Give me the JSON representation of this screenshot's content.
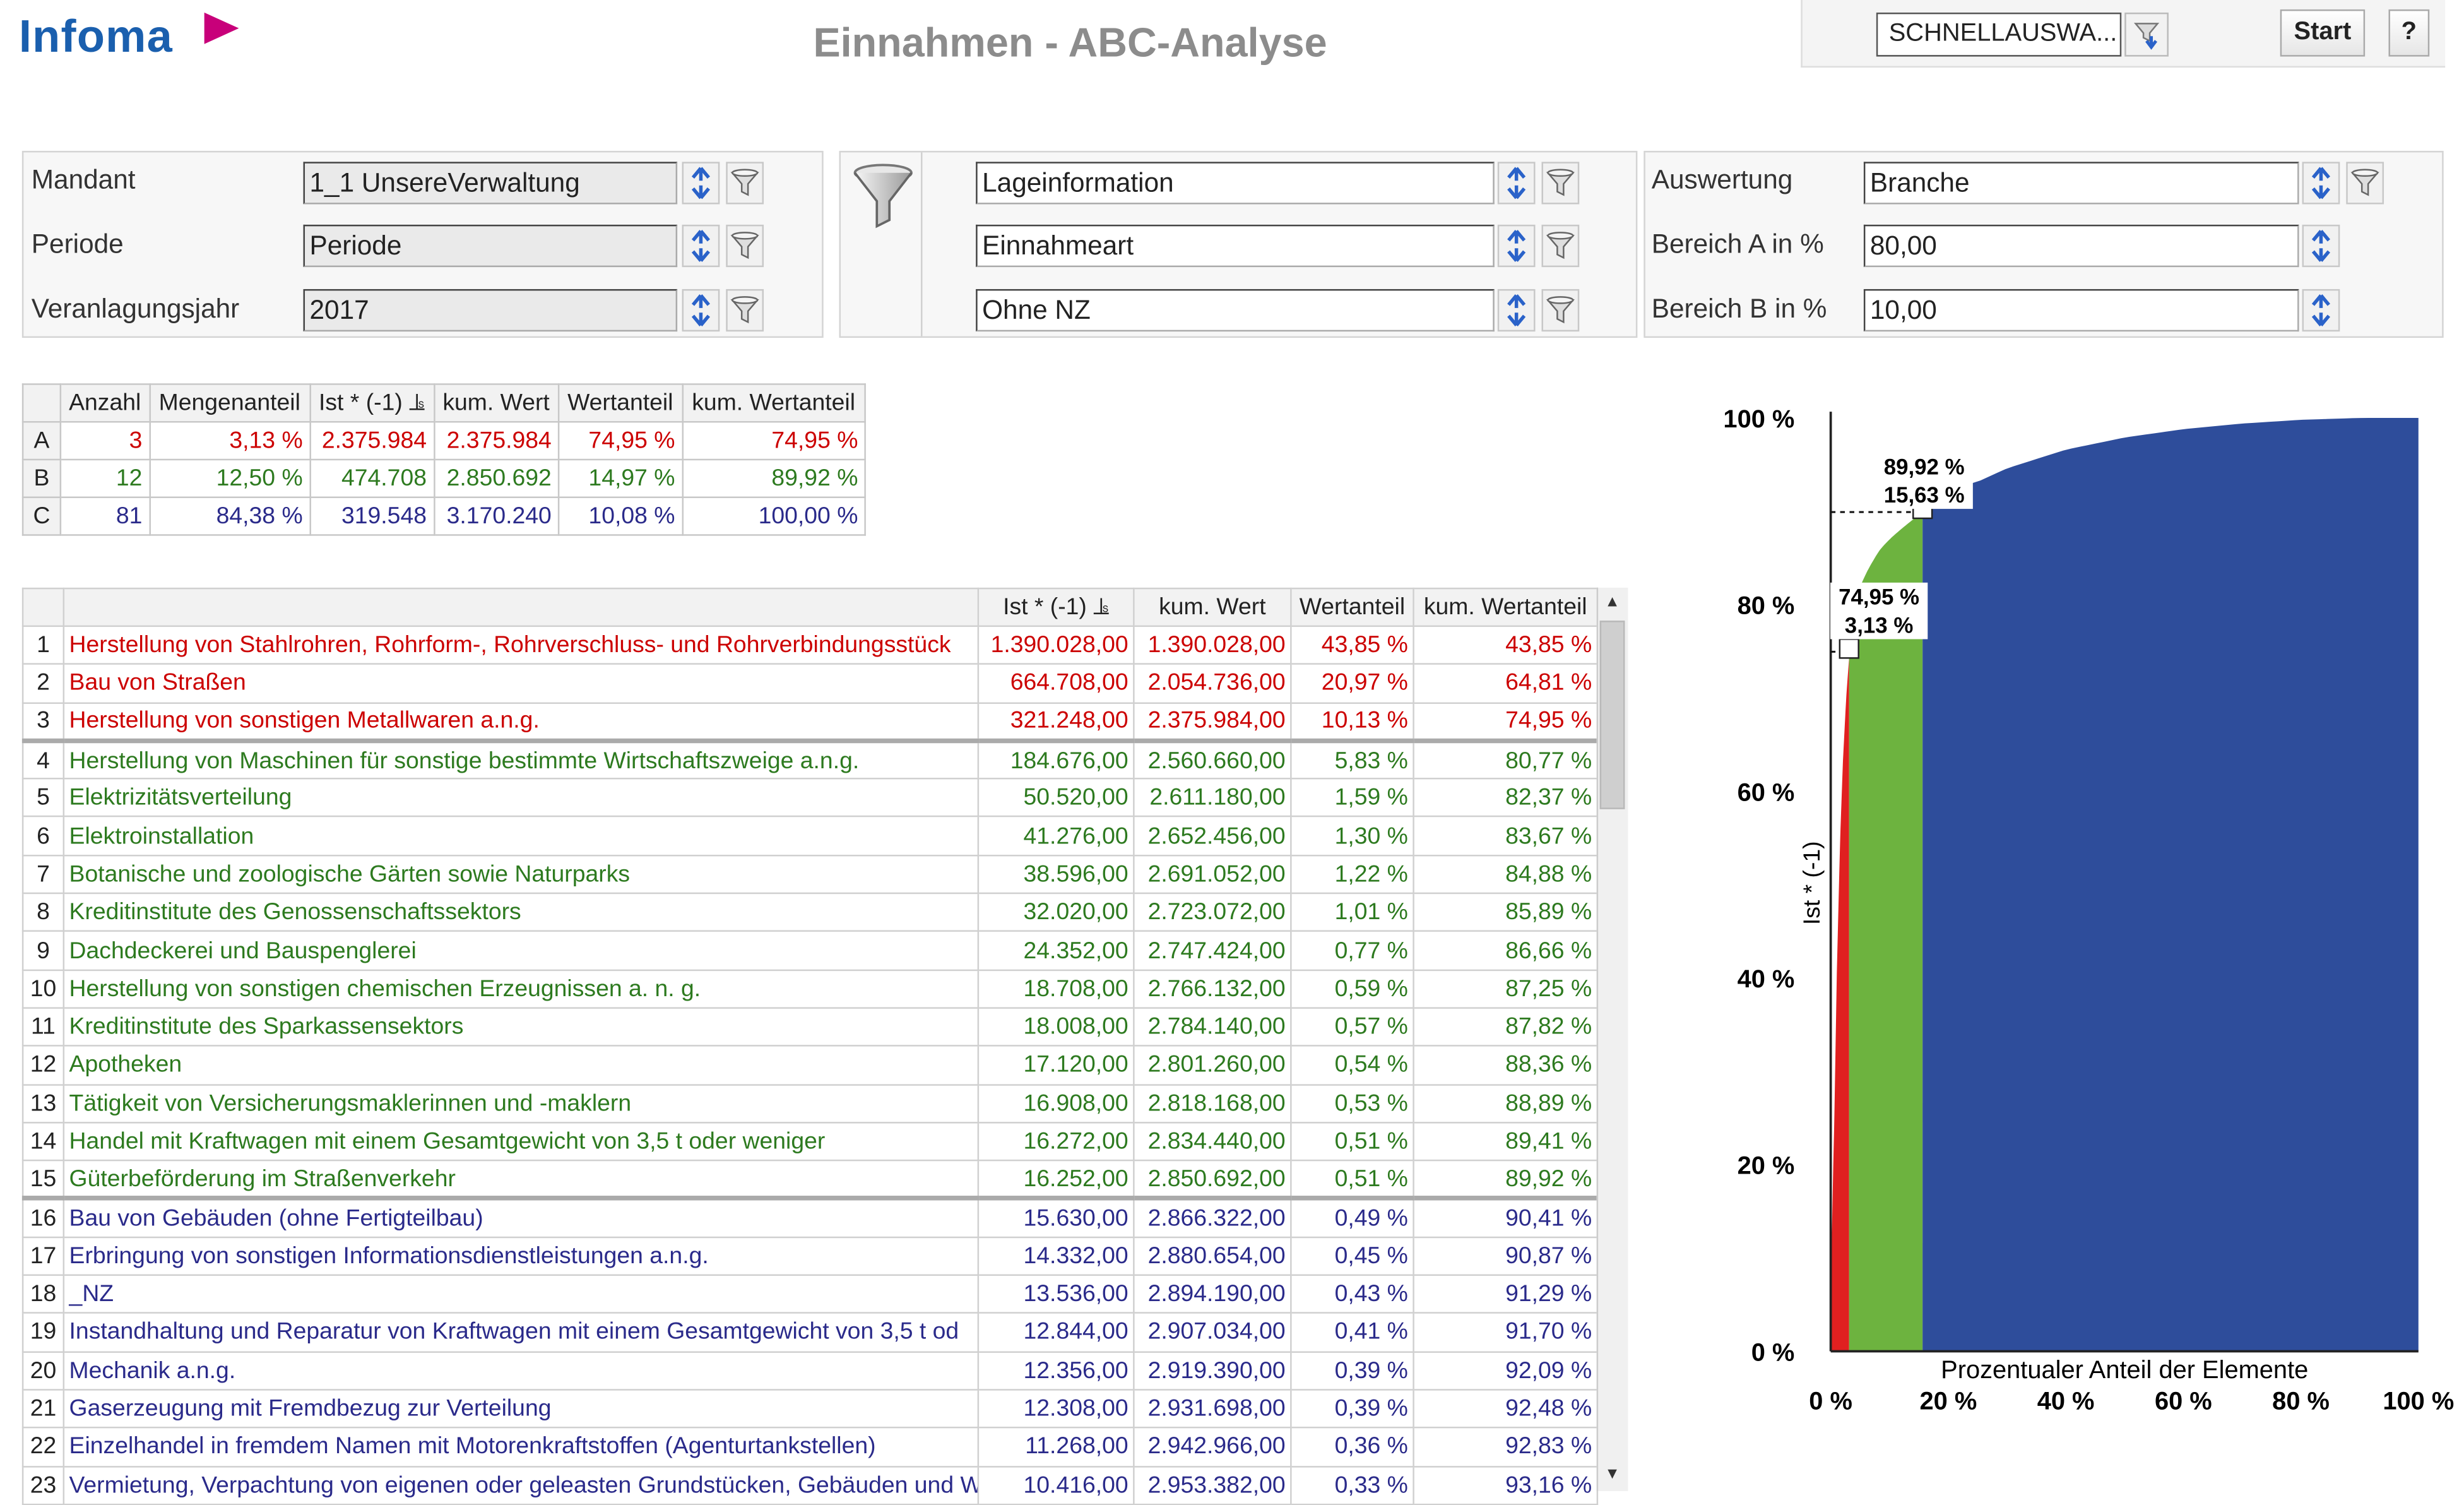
{
  "app": {
    "brand": "Infoma",
    "title": "Einnahmen - ABC-Analyse"
  },
  "toolbar": {
    "quick_select": "SCHNELLAUSWA...",
    "start_label": "Start",
    "help_label": "?"
  },
  "filters": {
    "left": [
      {
        "label": "Mandant",
        "value": "1_1 UnsereVerwaltung"
      },
      {
        "label": "Periode",
        "value": "Periode"
      },
      {
        "label": "Veranlagungsjahr",
        "value": "2017"
      }
    ],
    "middle": [
      {
        "value": "Lageinformation"
      },
      {
        "value": "Einnahmeart"
      },
      {
        "value": "Ohne NZ"
      }
    ],
    "right": [
      {
        "label": "Auswertung",
        "value": "Branche"
      },
      {
        "label": "Bereich A in %",
        "value": "80,00"
      },
      {
        "label": "Bereich B in %",
        "value": "10,00"
      }
    ]
  },
  "summary": {
    "headers": [
      "",
      "Anzahl",
      "Mengenanteil",
      "Ist * (-1)",
      "kum. Wert",
      "Wertanteil",
      "kum. Wertanteil"
    ],
    "rows": [
      {
        "cls": "A",
        "cells": [
          "A",
          "3",
          "3,13 %",
          "2.375.984",
          "2.375.984",
          "74,95 %",
          "74,95 %"
        ]
      },
      {
        "cls": "B",
        "cells": [
          "B",
          "12",
          "12,50 %",
          "474.708",
          "2.850.692",
          "14,97 %",
          "89,92 %"
        ]
      },
      {
        "cls": "C",
        "cells": [
          "C",
          "81",
          "84,38 %",
          "319.548",
          "3.170.240",
          "10,08 %",
          "100,00 %"
        ]
      }
    ]
  },
  "detail": {
    "headers": [
      "",
      "",
      "Ist * (-1)",
      "kum. Wert",
      "Wertanteil",
      "kum. Wertanteil"
    ],
    "rows": [
      {
        "cls": "A",
        "cells": [
          "1",
          "Herstellung von Stahlrohren, Rohrform-, Rohrverschluss- und Rohrverbindungsstück",
          "1.390.028,00",
          "1.390.028,00",
          "43,85 %",
          "43,85 %"
        ]
      },
      {
        "cls": "A",
        "cells": [
          "2",
          "Bau von Straßen",
          "664.708,00",
          "2.054.736,00",
          "20,97 %",
          "64,81 %"
        ]
      },
      {
        "cls": "A",
        "cells": [
          "3",
          "Herstellung von sonstigen Metallwaren a.n.g.",
          "321.248,00",
          "2.375.984,00",
          "10,13 %",
          "74,95 %"
        ]
      },
      {
        "cls": "B",
        "cells": [
          "4",
          "Herstellung von Maschinen für sonstige bestimmte Wirtschaftszweige a.n.g.",
          "184.676,00",
          "2.560.660,00",
          "5,83 %",
          "80,77 %"
        ]
      },
      {
        "cls": "B",
        "cells": [
          "5",
          "Elektrizitätsverteilung",
          "50.520,00",
          "2.611.180,00",
          "1,59 %",
          "82,37 %"
        ]
      },
      {
        "cls": "B",
        "cells": [
          "6",
          "Elektroinstallation",
          "41.276,00",
          "2.652.456,00",
          "1,30 %",
          "83,67 %"
        ]
      },
      {
        "cls": "B",
        "cells": [
          "7",
          "Botanische und zoologische Gärten sowie Naturparks",
          "38.596,00",
          "2.691.052,00",
          "1,22 %",
          "84,88 %"
        ]
      },
      {
        "cls": "B",
        "cells": [
          "8",
          "Kreditinstitute des Genossenschaftssektors",
          "32.020,00",
          "2.723.072,00",
          "1,01 %",
          "85,89 %"
        ]
      },
      {
        "cls": "B",
        "cells": [
          "9",
          "Dachdeckerei und Bauspenglerei",
          "24.352,00",
          "2.747.424,00",
          "0,77 %",
          "86,66 %"
        ]
      },
      {
        "cls": "B",
        "cells": [
          "10",
          "Herstellung von sonstigen chemischen Erzeugnissen a. n. g.",
          "18.708,00",
          "2.766.132,00",
          "0,59 %",
          "87,25 %"
        ]
      },
      {
        "cls": "B",
        "cells": [
          "11",
          "Kreditinstitute des Sparkassensektors",
          "18.008,00",
          "2.784.140,00",
          "0,57 %",
          "87,82 %"
        ]
      },
      {
        "cls": "B",
        "cells": [
          "12",
          "Apotheken",
          "17.120,00",
          "2.801.260,00",
          "0,54 %",
          "88,36 %"
        ]
      },
      {
        "cls": "B",
        "cells": [
          "13",
          "Tätigkeit von Versicherungsmaklerinnen und -maklern",
          "16.908,00",
          "2.818.168,00",
          "0,53 %",
          "88,89 %"
        ]
      },
      {
        "cls": "B",
        "cells": [
          "14",
          "Handel mit Kraftwagen mit einem Gesamtgewicht von 3,5 t oder weniger",
          "16.272,00",
          "2.834.440,00",
          "0,51 %",
          "89,41 %"
        ]
      },
      {
        "cls": "B",
        "cells": [
          "15",
          "Güterbeförderung im Straßenverkehr",
          "16.252,00",
          "2.850.692,00",
          "0,51 %",
          "89,92 %"
        ]
      },
      {
        "cls": "C",
        "cells": [
          "16",
          "Bau von Gebäuden (ohne Fertigteilbau)",
          "15.630,00",
          "2.866.322,00",
          "0,49 %",
          "90,41 %"
        ]
      },
      {
        "cls": "C",
        "cells": [
          "17",
          "Erbringung von sonstigen Informationsdienstleistungen a.n.g.",
          "14.332,00",
          "2.880.654,00",
          "0,45 %",
          "90,87 %"
        ]
      },
      {
        "cls": "C",
        "cells": [
          "18",
          "_NZ",
          "13.536,00",
          "2.894.190,00",
          "0,43 %",
          "91,29 %"
        ]
      },
      {
        "cls": "C",
        "cells": [
          "19",
          "Instandhaltung und Reparatur von Kraftwagen mit einem Gesamtgewicht von 3,5 t od",
          "12.844,00",
          "2.907.034,00",
          "0,41 %",
          "91,70 %"
        ]
      },
      {
        "cls": "C",
        "cells": [
          "20",
          "Mechanik a.n.g.",
          "12.356,00",
          "2.919.390,00",
          "0,39 %",
          "92,09 %"
        ]
      },
      {
        "cls": "C",
        "cells": [
          "21",
          "Gaserzeugung mit Fremdbezug zur Verteilung",
          "12.308,00",
          "2.931.698,00",
          "0,39 %",
          "92,48 %"
        ]
      },
      {
        "cls": "C",
        "cells": [
          "22",
          "Einzelhandel in fremdem Namen mit Motorenkraftstoffen (Agenturtankstellen)",
          "11.268,00",
          "2.942.966,00",
          "0,36 %",
          "92,83 %"
        ]
      },
      {
        "cls": "C",
        "cells": [
          "23",
          "Vermietung, Verpachtung von eigenen oder geleasten Grundstücken, Gebäuden und Wo",
          "10.416,00",
          "2.953.382,00",
          "0,33 %",
          "93,16 %"
        ]
      }
    ]
  },
  "colors": {
    "A": "#e02020",
    "B": "#6db33f",
    "C": "#2e4d9b",
    "textA": "#cc0000",
    "textB": "#2d7a1f",
    "textC": "#2a2a8a"
  },
  "chart_data": {
    "type": "area",
    "xlabel": "Prozentualer Anteil der Elemente",
    "ylabel": "Ist * (-1)",
    "x_ticks": [
      "0 %",
      "20 %",
      "40 %",
      "60 %",
      "80 %",
      "100 %"
    ],
    "y_ticks": [
      "0 %",
      "20 %",
      "40 %",
      "60 %",
      "80 %",
      "100 %"
    ],
    "xlim": [
      0,
      100
    ],
    "ylim": [
      0,
      100
    ],
    "series": [
      {
        "name": "A",
        "x_range": [
          0,
          3.13
        ],
        "color": "#e02020"
      },
      {
        "name": "B",
        "x_range": [
          3.13,
          15.63
        ],
        "color": "#6db33f"
      },
      {
        "name": "C",
        "x_range": [
          15.63,
          100
        ],
        "color": "#2e4d9b"
      }
    ],
    "x": [
      0,
      1.04,
      2.08,
      3.13,
      4.17,
      6.25,
      8.33,
      10.42,
      12.5,
      14.58,
      15.63,
      16.67,
      18.75,
      20.83,
      22.92,
      25,
      30,
      40,
      50,
      60,
      70,
      80,
      90,
      100
    ],
    "y": [
      0,
      43.85,
      64.81,
      74.95,
      80.77,
      83.67,
      85.89,
      87.25,
      88.36,
      89.41,
      89.92,
      90.41,
      91.29,
      92.09,
      92.83,
      93.16,
      94.6,
      96.6,
      97.9,
      98.8,
      99.4,
      99.8,
      100,
      100
    ],
    "annotations": [
      {
        "x": 3.13,
        "y": 74.95,
        "label": "74,95 %",
        "sublabel": "3,13 %"
      },
      {
        "x": 15.63,
        "y": 89.92,
        "label": "89,92 %",
        "sublabel": "15,63 %"
      }
    ]
  }
}
